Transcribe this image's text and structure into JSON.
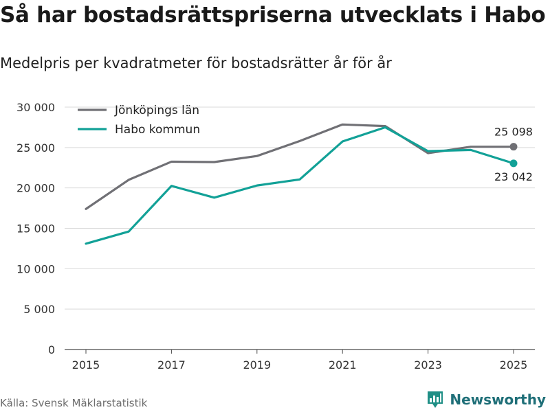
{
  "header": {
    "title": "Så har bostadsrättspriserna utvecklats i Habo",
    "subtitle": "Medelpris per kvadratmeter för bostadsrätter år för år"
  },
  "footer": {
    "source": "Källa: Svensk Mäklarstatistik",
    "brand": "Newsworthy"
  },
  "colors": {
    "series_lan": "#707075",
    "series_habo": "#12a197",
    "grid": "#d9d9d9",
    "text": "#1a1a1a",
    "brand": "#1f6f78"
  },
  "chart_data": {
    "type": "line",
    "title": "Så har bostadsrättspriserna utvecklats i Habo",
    "subtitle": "Medelpris per kvadratmeter för bostadsrätter år för år",
    "xlabel": "",
    "ylabel": "",
    "x": [
      2015,
      2016,
      2017,
      2018,
      2019,
      2020,
      2021,
      2022,
      2023,
      2024,
      2025
    ],
    "xticks": [
      "2015",
      "2017",
      "2019",
      "2021",
      "2023",
      "2025"
    ],
    "ylim": [
      0,
      30000
    ],
    "yticks": [
      "0",
      "5 000",
      "10 000",
      "15 000",
      "20 000",
      "25 000",
      "30 000"
    ],
    "grid": true,
    "legend": "top-left",
    "series": [
      {
        "name": "Jönköpings län",
        "values": [
          17400,
          21000,
          23250,
          23200,
          23950,
          25800,
          27850,
          27650,
          24300,
          25098,
          25098
        ],
        "end_label": "25 098"
      },
      {
        "name": "Habo kommun",
        "values": [
          13100,
          14600,
          20250,
          18800,
          20300,
          21050,
          25750,
          27500,
          24550,
          24700,
          23042
        ],
        "end_label": "23 042"
      }
    ]
  }
}
